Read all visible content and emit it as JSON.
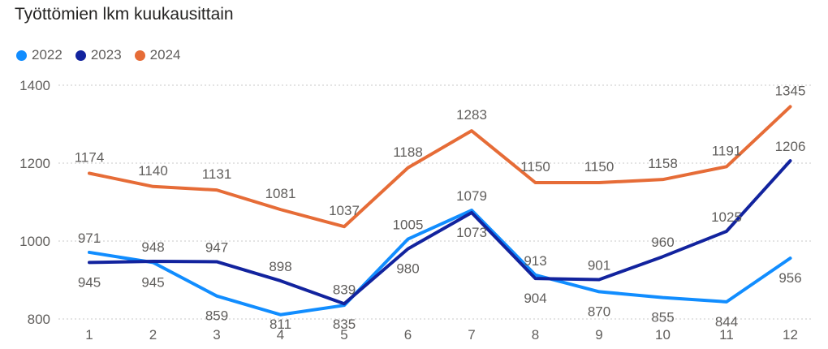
{
  "chart_data": {
    "type": "line",
    "title": "Työttömien lkm kuukausittain",
    "x": [
      1,
      2,
      3,
      4,
      5,
      6,
      7,
      8,
      9,
      10,
      11,
      12
    ],
    "ylim": [
      800,
      1400
    ],
    "yticks": [
      800,
      1000,
      1200,
      1400
    ],
    "grid": true,
    "legend": "top-left",
    "series": [
      {
        "name": "2022",
        "color": "#118dff",
        "values": [
          971,
          945,
          859,
          811,
          835,
          1005,
          1079,
          913,
          870,
          855,
          844,
          956
        ]
      },
      {
        "name": "2023",
        "color": "#12239e",
        "values": [
          945,
          948,
          947,
          898,
          839,
          980,
          1073,
          904,
          901,
          960,
          1025,
          1206
        ]
      },
      {
        "name": "2024",
        "color": "#e66c37",
        "values": [
          1174,
          1140,
          1131,
          1081,
          1037,
          1188,
          1283,
          1150,
          1150,
          1158,
          1191,
          1345
        ]
      }
    ]
  }
}
